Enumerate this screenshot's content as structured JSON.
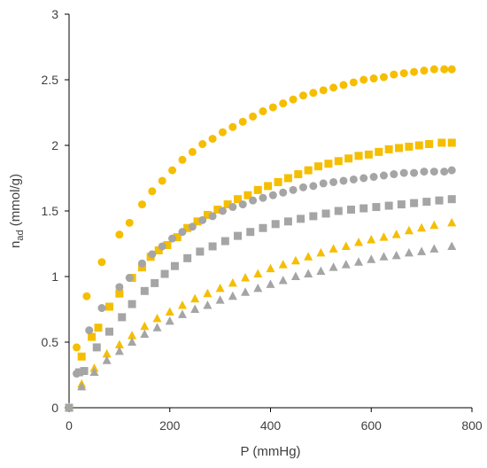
{
  "chart_data": {
    "type": "scatter",
    "title": "",
    "xlabel": "P (mmHg)",
    "ylabel_main": "n",
    "ylabel_sub": "ad",
    "ylabel_unit": " (mmol/g)",
    "xlim": [
      0,
      800
    ],
    "ylim": [
      0,
      3
    ],
    "x_ticks": [
      0,
      200,
      400,
      600,
      800
    ],
    "y_ticks": [
      0,
      0.5,
      1,
      1.5,
      2,
      2.5,
      3
    ],
    "y_tick_labels": [
      "0",
      "0.5",
      "1",
      "1.5",
      "2",
      "2.5",
      "3"
    ],
    "grid": false,
    "legend": "none",
    "colors": {
      "yellow": "#F5BE00",
      "gray": "#A5A5A5"
    },
    "series": [
      {
        "marker": "circle",
        "color": "#F5BE00",
        "points": [
          [
            0,
            0
          ],
          [
            15,
            0.46
          ],
          [
            35,
            0.85
          ],
          [
            65,
            1.11
          ],
          [
            100,
            1.32
          ],
          [
            120,
            1.41
          ],
          [
            145,
            1.55
          ],
          [
            165,
            1.65
          ],
          [
            185,
            1.73
          ],
          [
            205,
            1.81
          ],
          [
            225,
            1.89
          ],
          [
            245,
            1.95
          ],
          [
            265,
            2.01
          ],
          [
            285,
            2.05
          ],
          [
            305,
            2.1
          ],
          [
            325,
            2.14
          ],
          [
            345,
            2.18
          ],
          [
            365,
            2.22
          ],
          [
            385,
            2.26
          ],
          [
            405,
            2.29
          ],
          [
            425,
            2.32
          ],
          [
            445,
            2.35
          ],
          [
            465,
            2.38
          ],
          [
            485,
            2.4
          ],
          [
            505,
            2.42
          ],
          [
            525,
            2.44
          ],
          [
            545,
            2.46
          ],
          [
            565,
            2.48
          ],
          [
            585,
            2.5
          ],
          [
            605,
            2.51
          ],
          [
            625,
            2.52
          ],
          [
            645,
            2.54
          ],
          [
            665,
            2.55
          ],
          [
            685,
            2.56
          ],
          [
            705,
            2.57
          ],
          [
            725,
            2.58
          ],
          [
            745,
            2.58
          ],
          [
            760,
            2.58
          ]
        ]
      },
      {
        "marker": "square",
        "color": "#F5BE00",
        "points": [
          [
            0,
            0
          ],
          [
            25,
            0.39
          ],
          [
            45,
            0.54
          ],
          [
            58,
            0.61
          ],
          [
            80,
            0.77
          ],
          [
            100,
            0.87
          ],
          [
            125,
            0.99
          ],
          [
            145,
            1.07
          ],
          [
            162,
            1.15
          ],
          [
            178,
            1.2
          ],
          [
            195,
            1.24
          ],
          [
            215,
            1.3
          ],
          [
            235,
            1.37
          ],
          [
            255,
            1.42
          ],
          [
            275,
            1.47
          ],
          [
            295,
            1.51
          ],
          [
            315,
            1.55
          ],
          [
            335,
            1.59
          ],
          [
            355,
            1.62
          ],
          [
            375,
            1.66
          ],
          [
            395,
            1.69
          ],
          [
            415,
            1.72
          ],
          [
            435,
            1.75
          ],
          [
            455,
            1.78
          ],
          [
            475,
            1.81
          ],
          [
            495,
            1.84
          ],
          [
            515,
            1.86
          ],
          [
            535,
            1.88
          ],
          [
            555,
            1.9
          ],
          [
            575,
            1.92
          ],
          [
            595,
            1.93
          ],
          [
            615,
            1.95
          ],
          [
            635,
            1.97
          ],
          [
            655,
            1.98
          ],
          [
            675,
            1.99
          ],
          [
            695,
            2.0
          ],
          [
            715,
            2.01
          ],
          [
            740,
            2.02
          ],
          [
            760,
            2.02
          ]
        ]
      },
      {
        "marker": "circle",
        "color": "#A5A5A5",
        "points": [
          [
            0,
            0
          ],
          [
            15,
            0.26
          ],
          [
            40,
            0.59
          ],
          [
            65,
            0.76
          ],
          [
            100,
            0.92
          ],
          [
            120,
            0.99
          ],
          [
            145,
            1.1
          ],
          [
            165,
            1.17
          ],
          [
            185,
            1.23
          ],
          [
            205,
            1.29
          ],
          [
            225,
            1.34
          ],
          [
            245,
            1.38
          ],
          [
            265,
            1.43
          ],
          [
            285,
            1.46
          ],
          [
            305,
            1.5
          ],
          [
            325,
            1.53
          ],
          [
            345,
            1.55
          ],
          [
            365,
            1.58
          ],
          [
            385,
            1.6
          ],
          [
            405,
            1.62
          ],
          [
            425,
            1.64
          ],
          [
            445,
            1.66
          ],
          [
            465,
            1.68
          ],
          [
            485,
            1.69
          ],
          [
            505,
            1.71
          ],
          [
            525,
            1.72
          ],
          [
            545,
            1.73
          ],
          [
            565,
            1.74
          ],
          [
            585,
            1.75
          ],
          [
            605,
            1.76
          ],
          [
            625,
            1.77
          ],
          [
            645,
            1.78
          ],
          [
            665,
            1.79
          ],
          [
            685,
            1.79
          ],
          [
            705,
            1.8
          ],
          [
            725,
            1.8
          ],
          [
            745,
            1.8
          ],
          [
            760,
            1.81
          ]
        ]
      },
      {
        "marker": "square",
        "color": "#A5A5A5",
        "points": [
          [
            0,
            0
          ],
          [
            20,
            0.27
          ],
          [
            30,
            0.28
          ],
          [
            55,
            0.46
          ],
          [
            80,
            0.58
          ],
          [
            105,
            0.69
          ],
          [
            125,
            0.79
          ],
          [
            150,
            0.89
          ],
          [
            170,
            0.95
          ],
          [
            190,
            1.02
          ],
          [
            210,
            1.08
          ],
          [
            235,
            1.14
          ],
          [
            260,
            1.19
          ],
          [
            285,
            1.23
          ],
          [
            310,
            1.27
          ],
          [
            335,
            1.31
          ],
          [
            360,
            1.34
          ],
          [
            385,
            1.37
          ],
          [
            410,
            1.4
          ],
          [
            435,
            1.42
          ],
          [
            460,
            1.44
          ],
          [
            485,
            1.46
          ],
          [
            510,
            1.48
          ],
          [
            535,
            1.5
          ],
          [
            560,
            1.51
          ],
          [
            585,
            1.52
          ],
          [
            610,
            1.53
          ],
          [
            635,
            1.54
          ],
          [
            660,
            1.55
          ],
          [
            685,
            1.56
          ],
          [
            710,
            1.57
          ],
          [
            735,
            1.58
          ],
          [
            760,
            1.59
          ]
        ]
      },
      {
        "marker": "triangle",
        "color": "#F5BE00",
        "points": [
          [
            0,
            0
          ],
          [
            25,
            0.18
          ],
          [
            50,
            0.3
          ],
          [
            75,
            0.41
          ],
          [
            100,
            0.48
          ],
          [
            125,
            0.55
          ],
          [
            150,
            0.62
          ],
          [
            175,
            0.68
          ],
          [
            200,
            0.73
          ],
          [
            225,
            0.78
          ],
          [
            250,
            0.83
          ],
          [
            275,
            0.87
          ],
          [
            300,
            0.91
          ],
          [
            325,
            0.95
          ],
          [
            350,
            0.99
          ],
          [
            375,
            1.02
          ],
          [
            400,
            1.06
          ],
          [
            425,
            1.09
          ],
          [
            450,
            1.12
          ],
          [
            475,
            1.15
          ],
          [
            500,
            1.18
          ],
          [
            525,
            1.21
          ],
          [
            550,
            1.23
          ],
          [
            575,
            1.26
          ],
          [
            600,
            1.28
          ],
          [
            625,
            1.3
          ],
          [
            650,
            1.32
          ],
          [
            675,
            1.35
          ],
          [
            700,
            1.37
          ],
          [
            725,
            1.39
          ],
          [
            760,
            1.41
          ]
        ]
      },
      {
        "marker": "triangle",
        "color": "#A5A5A5",
        "points": [
          [
            0,
            0
          ],
          [
            25,
            0.16
          ],
          [
            50,
            0.27
          ],
          [
            75,
            0.36
          ],
          [
            100,
            0.43
          ],
          [
            125,
            0.5
          ],
          [
            150,
            0.56
          ],
          [
            175,
            0.61
          ],
          [
            200,
            0.66
          ],
          [
            225,
            0.71
          ],
          [
            250,
            0.75
          ],
          [
            275,
            0.78
          ],
          [
            300,
            0.82
          ],
          [
            325,
            0.85
          ],
          [
            350,
            0.88
          ],
          [
            375,
            0.91
          ],
          [
            400,
            0.94
          ],
          [
            425,
            0.97
          ],
          [
            450,
            1.0
          ],
          [
            475,
            1.02
          ],
          [
            500,
            1.04
          ],
          [
            525,
            1.07
          ],
          [
            550,
            1.09
          ],
          [
            575,
            1.11
          ],
          [
            600,
            1.13
          ],
          [
            625,
            1.15
          ],
          [
            650,
            1.16
          ],
          [
            675,
            1.18
          ],
          [
            700,
            1.19
          ],
          [
            725,
            1.21
          ],
          [
            760,
            1.23
          ]
        ]
      }
    ]
  }
}
